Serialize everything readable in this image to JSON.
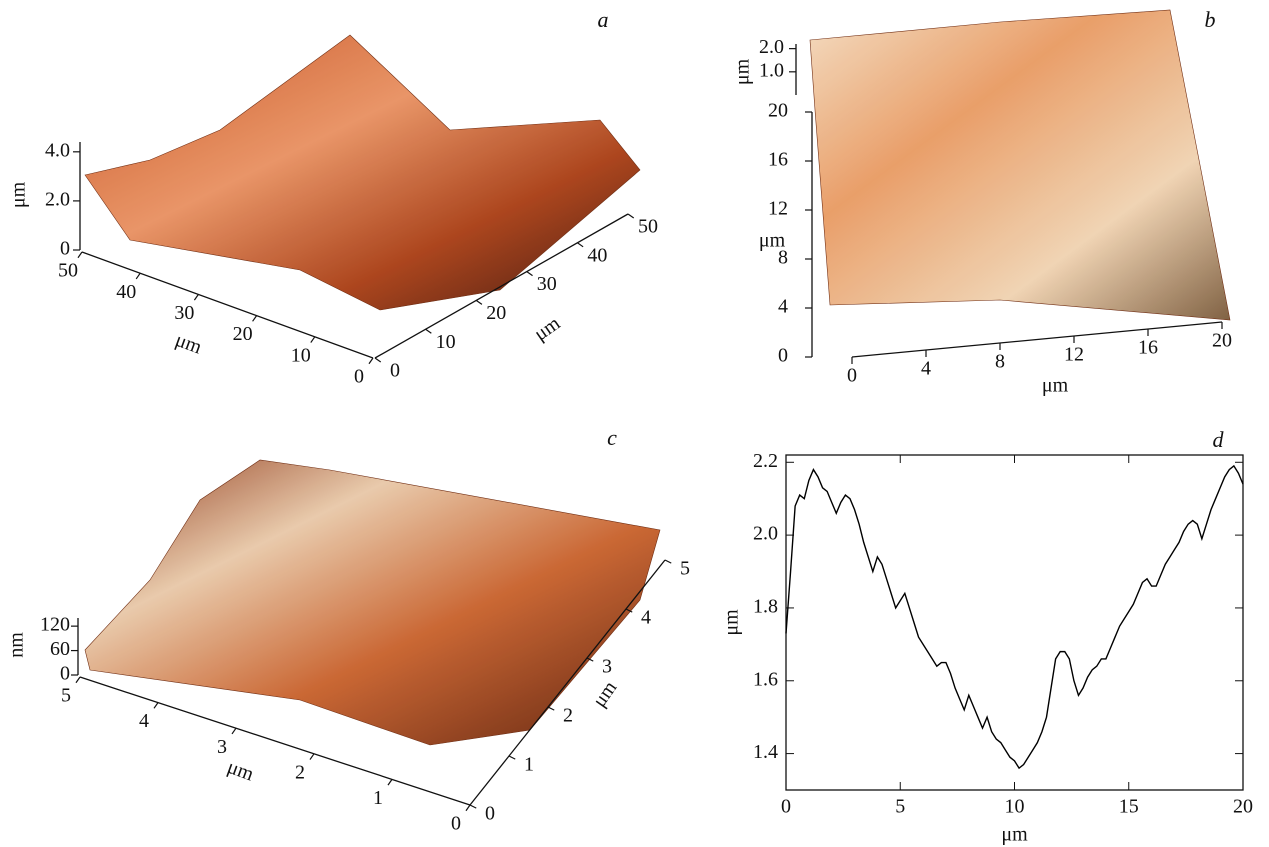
{
  "chart_data": [
    {
      "type": "surface3d",
      "label": "a",
      "zlabel": "μm",
      "zlim": [
        0,
        4.4
      ],
      "zticks": [
        0,
        {
          "value": 2,
          "label": "2.0"
        },
        {
          "value": 4,
          "label": "4.0"
        }
      ],
      "ylabel": "μm",
      "ylim": [
        0,
        50
      ],
      "yticks": [
        0,
        10,
        20,
        30,
        40,
        50
      ],
      "xlabel": "μm",
      "xlim": [
        0,
        50
      ],
      "xticks": [
        0,
        10,
        20,
        30,
        40,
        50
      ]
    },
    {
      "type": "surface3d",
      "label": "b",
      "zlabel": "μm",
      "zlim": [
        0,
        2.2
      ],
      "zticks": [
        {
          "value": 1,
          "label": "1.0"
        },
        {
          "value": 2,
          "label": "2.0"
        }
      ],
      "ylabel": "μm",
      "ylim": [
        0,
        20
      ],
      "yticks": [
        0,
        4,
        8,
        12,
        16,
        20
      ],
      "xlabel": "μm",
      "xlim": [
        0,
        20
      ],
      "xticks": [
        0,
        4,
        8,
        12,
        16,
        20
      ]
    },
    {
      "type": "surface3d",
      "label": "c",
      "zlabel": "nm",
      "zlim": [
        0,
        140
      ],
      "zticks": [
        0,
        60,
        120
      ],
      "ylabel": "μm",
      "ylim": [
        0,
        5
      ],
      "yticks": [
        0,
        1,
        2,
        3,
        4,
        5
      ],
      "xlabel": "μm",
      "xlim": [
        0,
        5
      ],
      "xticks": [
        0,
        1,
        2,
        3,
        4,
        5
      ]
    },
    {
      "type": "line",
      "label": "d",
      "xlabel": "μm",
      "ylabel": "μm",
      "color": "#000000",
      "xlim": [
        0,
        20
      ],
      "xticks": [
        0,
        5,
        10,
        15,
        20
      ],
      "ylim": [
        1.3,
        2.22
      ],
      "yticks": [
        1.4,
        1.6,
        1.8,
        {
          "value": 2,
          "label": "2.0"
        },
        2.2
      ],
      "x": [
        0,
        0.2,
        0.4,
        0.6,
        0.8,
        1.0,
        1.2,
        1.4,
        1.6,
        1.8,
        2.0,
        2.2,
        2.4,
        2.6,
        2.8,
        3.0,
        3.2,
        3.4,
        3.6,
        3.8,
        4.0,
        4.2,
        4.4,
        4.6,
        4.8,
        5.0,
        5.2,
        5.4,
        5.6,
        5.8,
        6.0,
        6.2,
        6.4,
        6.6,
        6.8,
        7.0,
        7.2,
        7.4,
        7.6,
        7.8,
        8.0,
        8.2,
        8.4,
        8.6,
        8.8,
        9.0,
        9.2,
        9.4,
        9.6,
        9.8,
        10.0,
        10.2,
        10.4,
        10.6,
        10.8,
        11.0,
        11.2,
        11.4,
        11.6,
        11.8,
        12.0,
        12.2,
        12.4,
        12.6,
        12.8,
        13.0,
        13.2,
        13.4,
        13.6,
        13.8,
        14.0,
        14.2,
        14.4,
        14.6,
        14.8,
        15.0,
        15.2,
        15.4,
        15.6,
        15.8,
        16.0,
        16.2,
        16.4,
        16.6,
        16.8,
        17.0,
        17.2,
        17.4,
        17.6,
        17.8,
        18.0,
        18.2,
        18.4,
        18.6,
        18.8,
        19.0,
        19.2,
        19.4,
        19.6,
        19.8,
        20.0
      ],
      "values": [
        1.73,
        1.9,
        2.08,
        2.11,
        2.1,
        2.15,
        2.18,
        2.16,
        2.13,
        2.12,
        2.09,
        2.06,
        2.09,
        2.11,
        2.1,
        2.07,
        2.03,
        1.98,
        1.94,
        1.9,
        1.94,
        1.92,
        1.88,
        1.84,
        1.8,
        1.82,
        1.84,
        1.8,
        1.76,
        1.72,
        1.7,
        1.68,
        1.66,
        1.64,
        1.65,
        1.65,
        1.62,
        1.58,
        1.55,
        1.52,
        1.56,
        1.53,
        1.5,
        1.47,
        1.5,
        1.46,
        1.44,
        1.43,
        1.41,
        1.39,
        1.38,
        1.36,
        1.37,
        1.39,
        1.41,
        1.43,
        1.46,
        1.5,
        1.58,
        1.66,
        1.68,
        1.68,
        1.66,
        1.6,
        1.56,
        1.58,
        1.61,
        1.63,
        1.64,
        1.66,
        1.66,
        1.69,
        1.72,
        1.75,
        1.77,
        1.79,
        1.81,
        1.84,
        1.87,
        1.88,
        1.86,
        1.86,
        1.89,
        1.92,
        1.94,
        1.96,
        1.98,
        2.01,
        2.03,
        2.04,
        2.03,
        1.99,
        2.03,
        2.07,
        2.1,
        2.13,
        2.16,
        2.18,
        2.19,
        2.17,
        2.14
      ]
    }
  ]
}
